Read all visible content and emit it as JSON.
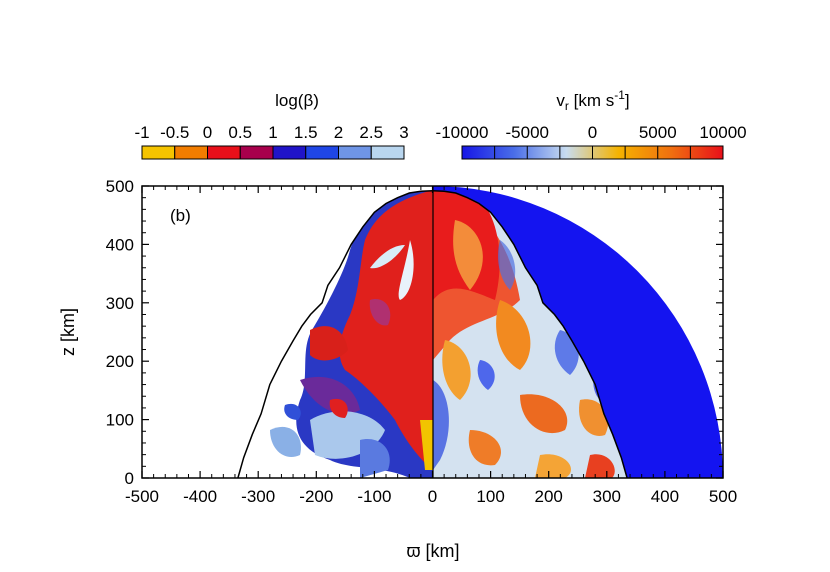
{
  "chart_data": {
    "type": "heatmap",
    "panel_label": "(b)",
    "xlabel": "ϖ [km]",
    "ylabel": "z [km]",
    "xlim": [
      -500,
      500
    ],
    "ylim": [
      0,
      500
    ],
    "x_ticks": [
      "-500",
      "-400",
      "-300",
      "-200",
      "-100",
      "0",
      "100",
      "200",
      "300",
      "400",
      "500"
    ],
    "y_ticks": [
      "0",
      "100",
      "200",
      "300",
      "400",
      "500"
    ],
    "x_tick_values": [
      -500,
      -400,
      -300,
      -200,
      -100,
      0,
      100,
      200,
      300,
      400,
      500
    ],
    "y_tick_values": [
      0,
      100,
      200,
      300,
      400,
      500
    ],
    "left_panel": {
      "quantity": "log(β)",
      "colorbar_label": "log(β)",
      "colorbar_ticks": [
        "-1",
        "-0.5",
        "0",
        "0.5",
        "1",
        "1.5",
        "2",
        "2.5",
        "3"
      ],
      "colorbar_range": [
        -1,
        3
      ],
      "colorbar_colors": [
        "#f5c400",
        "#f27d00",
        "#e8101a",
        "#a8004c",
        "#2014c8",
        "#1f46e6",
        "#6f95e6",
        "#b9d6ef"
      ]
    },
    "right_panel": {
      "quantity": "v_r [km s^-1]",
      "colorbar_label_main": "v",
      "colorbar_label_sub": "r",
      "colorbar_label_unit": " [km s",
      "colorbar_label_exp": "-1",
      "colorbar_label_close": "]",
      "colorbar_ticks": [
        "-10000",
        "-5000",
        "0",
        "5000",
        "10000"
      ],
      "colorbar_range": [
        -10000,
        10000
      ],
      "colorbar_gradient": [
        "#1616e6",
        "#4a6ee8",
        "#c8dcf0",
        "#f5b300",
        "#f07010",
        "#e8101a"
      ]
    },
    "shock_boundary": [
      [
        0,
        492
      ],
      [
        20,
        491
      ],
      [
        40,
        488
      ],
      [
        60,
        480
      ],
      [
        80,
        470
      ],
      [
        100,
        455
      ],
      [
        120,
        430
      ],
      [
        140,
        400
      ],
      [
        160,
        360
      ],
      [
        180,
        330
      ],
      [
        190,
        300
      ],
      [
        210,
        280
      ],
      [
        225,
        260
      ],
      [
        240,
        235
      ],
      [
        260,
        200
      ],
      [
        280,
        160
      ],
      [
        295,
        110
      ],
      [
        310,
        75
      ],
      [
        325,
        35
      ],
      [
        335,
        0
      ]
    ],
    "outer_domain_radius": 500
  }
}
